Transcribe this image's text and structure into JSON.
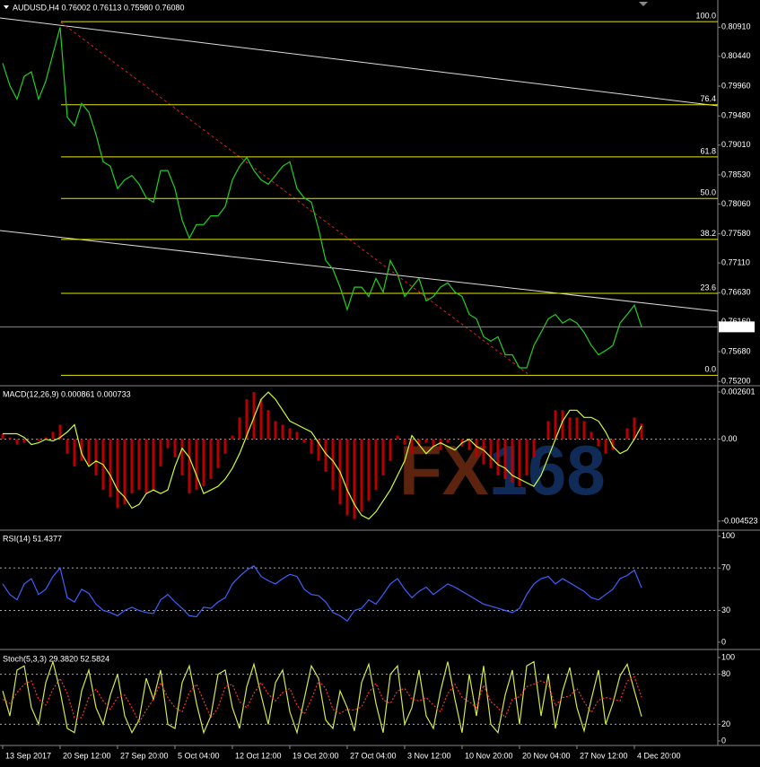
{
  "chart_data": [
    {
      "type": "line",
      "header": "AUDUSD,H4  0.76002 0.76113 0.75980 0.76080",
      "xlim": [
        -0.375,
        99.625
      ],
      "ylim": [
        0.7516,
        0.8132
      ],
      "yticks": [
        {
          "value": 0.8091,
          "label": "0.80910"
        },
        {
          "value": 0.8044,
          "label": "0.80440"
        },
        {
          "value": 0.7996,
          "label": "0.79960"
        },
        {
          "value": 0.7948,
          "label": "0.79480"
        },
        {
          "value": 0.7901,
          "label": "0.79010"
        },
        {
          "value": 0.7853,
          "label": "0.78530"
        },
        {
          "value": 0.7806,
          "label": "0.78060"
        },
        {
          "value": 0.7758,
          "label": "0.77580"
        },
        {
          "value": 0.7711,
          "label": "0.77110"
        },
        {
          "value": 0.7663,
          "label": "0.76630"
        },
        {
          "value": 0.7616,
          "label": "0.76160"
        },
        {
          "value": 0.7568,
          "label": "0.75680"
        },
        {
          "value": 0.752,
          "label": "0.75200"
        }
      ],
      "fib_levels": [
        {
          "value": 0.81,
          "label": "100.0"
        },
        {
          "value": 0.7966,
          "label": "76.4"
        },
        {
          "value": 0.7882,
          "label": "61.8"
        },
        {
          "value": 0.7815,
          "label": "50.0"
        },
        {
          "value": 0.7749,
          "label": "38.2"
        },
        {
          "value": 0.7662,
          "label": "23.6"
        },
        {
          "value": 0.753,
          "label": "0.0"
        }
      ],
      "fib_color": "#e6e600",
      "last_price": {
        "value": 0.7608,
        "label": "0.76080"
      },
      "series": [
        {
          "style": "line",
          "color": "#22d022",
          "values": [
            0.8033,
            0.7997,
            0.7975,
            0.8012,
            0.8019,
            0.7975,
            0.8004,
            0.8048,
            0.8091,
            0.7946,
            0.7932,
            0.7968,
            0.7954,
            0.7918,
            0.7874,
            0.7867,
            0.7831,
            0.7845,
            0.7852,
            0.7838,
            0.7816,
            0.7809,
            0.786,
            0.786,
            0.7831,
            0.778,
            0.7751,
            0.7773,
            0.7773,
            0.7787,
            0.7787,
            0.7802,
            0.7845,
            0.7867,
            0.7881,
            0.786,
            0.7845,
            0.7838,
            0.7852,
            0.7867,
            0.7874,
            0.7831,
            0.7816,
            0.7809,
            0.7766,
            0.7715,
            0.7701,
            0.7672,
            0.7636,
            0.7672,
            0.7672,
            0.7657,
            0.7686,
            0.7664,
            0.7715,
            0.7693,
            0.7657,
            0.7672,
            0.7686,
            0.765,
            0.7657,
            0.7672,
            0.7679,
            0.7664,
            0.7657,
            0.7628,
            0.7621,
            0.7592,
            0.7585,
            0.7592,
            0.7563,
            0.7563,
            0.7542,
            0.7542,
            0.7578,
            0.7599,
            0.7621,
            0.7628,
            0.7614,
            0.7621,
            0.7614,
            0.7599,
            0.7578,
            0.7563,
            0.757,
            0.7578,
            0.7614,
            0.7628,
            0.7643,
            0.7608
          ]
        }
      ]
    },
    {
      "type": "bar",
      "title": "MACD(12,26,9) 0.000861 0.000733",
      "xlim": [
        -0.375,
        99.625
      ],
      "ylim": [
        -0.00497,
        0.00285
      ],
      "yticks": [
        0.002601,
        {
          "value": 0,
          "label": "0.00"
        },
        -0.004523
      ],
      "levels": [
        0
      ],
      "watermark": [
        "FX",
        "168"
      ],
      "series": [
        {
          "style": "bar",
          "color": "#b80000",
          "values": [
            0.0003,
            0.0001,
            -0.0003,
            -0.0002,
            0,
            -0.0001,
            0.0001,
            0.0004,
            0.0008,
            -0.0008,
            -0.0015,
            -0.0012,
            -0.0014,
            -0.002,
            -0.0028,
            -0.0032,
            -0.0038,
            -0.0036,
            -0.003,
            -0.0028,
            -0.003,
            -0.0028,
            -0.0015,
            -0.0005,
            -0.001,
            -0.002,
            -0.003,
            -0.0028,
            -0.0026,
            -0.0022,
            -0.0016,
            -0.0008,
            0.0002,
            0.0012,
            0.0022,
            0.0026,
            0.0022,
            0.0016,
            0.001,
            0.0008,
            0.0006,
            0.0004,
            -0.0002,
            -0.0008,
            -0.0012,
            -0.0018,
            -0.0028,
            -0.0036,
            -0.0042,
            -0.0044,
            -0.004,
            -0.0034,
            -0.0028,
            -0.002,
            -0.0012,
            0.0002,
            -0.0003,
            -0.0008,
            -0.0004,
            -0.0002,
            -0.0004,
            -0.0006,
            -0.0002,
            0,
            -0.0004,
            -0.0006,
            -0.001,
            -0.0014,
            -0.0016,
            -0.002,
            -0.0022,
            -0.0024,
            -0.0026,
            -0.002,
            -0.001,
            0,
            0.001,
            0.0016,
            0.0016,
            0.0012,
            0.0012,
            0.001,
            0.0004,
            -0.0004,
            -0.0008,
            -0.0006,
            0,
            0.0006,
            0.0012,
            0.000861
          ]
        },
        {
          "style": "line",
          "color": "#ccff33",
          "values": [
            0.0003,
            0.0003,
            0.0003,
            0.0001,
            -0.0003,
            -0.0002,
            0,
            -0.0001,
            0.0001,
            0.0004,
            0.0008,
            -0.0008,
            -0.0015,
            -0.0012,
            -0.0014,
            -0.002,
            -0.0028,
            -0.0032,
            -0.0038,
            -0.0036,
            -0.003,
            -0.0028,
            -0.003,
            -0.0028,
            -0.0015,
            -0.0005,
            -0.001,
            -0.002,
            -0.003,
            -0.0028,
            -0.0026,
            -0.0022,
            -0.0016,
            -0.0008,
            0.0002,
            0.0012,
            0.0022,
            0.0026,
            0.0022,
            0.0016,
            0.001,
            0.0008,
            0.0006,
            0.0004,
            -0.0002,
            -0.0008,
            -0.0012,
            -0.0018,
            -0.0028,
            -0.0036,
            -0.0042,
            -0.0044,
            -0.004,
            -0.0034,
            -0.0028,
            -0.002,
            -0.0012,
            0.0002,
            -0.0003,
            -0.0008,
            -0.0004,
            -0.0002,
            -0.0004,
            -0.0006,
            -0.0002,
            0,
            -0.0004,
            -0.0006,
            -0.001,
            -0.0014,
            -0.0016,
            -0.002,
            -0.0022,
            -0.0024,
            -0.0026,
            -0.002,
            -0.001,
            0,
            0.001,
            0.0016,
            0.0016,
            0.0012,
            0.0012,
            0.001,
            0.0004,
            -0.0004,
            -0.0008,
            -0.0006,
            0,
            0.000733
          ]
        }
      ]
    },
    {
      "type": "line",
      "title": "RSI(14) 51.4377",
      "xlim": [
        -0.375,
        99.625
      ],
      "ylim": [
        -6,
        104
      ],
      "yticks": [
        100,
        70,
        30,
        0
      ],
      "levels": [
        70,
        30
      ],
      "series": [
        {
          "style": "line",
          "color": "#3f5fff",
          "values": [
            55,
            45,
            40,
            55,
            60,
            45,
            50,
            62,
            70,
            42,
            38,
            50,
            46,
            36,
            30,
            28,
            25,
            30,
            33,
            30,
            28,
            27,
            40,
            45,
            38,
            32,
            25,
            24,
            33,
            32,
            38,
            42,
            55,
            62,
            68,
            72,
            62,
            58,
            55,
            60,
            64,
            62,
            50,
            45,
            44,
            38,
            28,
            25,
            20,
            30,
            32,
            40,
            36,
            45,
            55,
            60,
            50,
            42,
            48,
            52,
            45,
            50,
            55,
            52,
            48,
            44,
            40,
            36,
            34,
            32,
            30,
            28,
            32,
            45,
            55,
            60,
            62,
            55,
            60,
            56,
            52,
            48,
            42,
            40,
            45,
            50,
            60,
            63,
            68,
            51.4377
          ]
        }
      ]
    },
    {
      "type": "line",
      "title": "Stoch(5,3,3) 29.3820 52.5824",
      "xlim": [
        -0.375,
        99.625
      ],
      "ylim": [
        -4.3,
        107.5
      ],
      "yticks": [
        100,
        80,
        20,
        0
      ],
      "levels": [
        80,
        20
      ],
      "xticks": [
        {
          "value": 0,
          "label": "13 Sep 2017"
        },
        {
          "value": 8,
          "label": "20 Sep 12:00"
        },
        {
          "value": 16,
          "label": "27 Sep 20:00"
        },
        {
          "value": 24,
          "label": "5 Oct 04:00"
        },
        {
          "value": 32,
          "label": "12 Oct 12:00"
        },
        {
          "value": 40,
          "label": "19 Oct 20:00"
        },
        {
          "value": 48,
          "label": "27 Oct 04:00"
        },
        {
          "value": 56,
          "label": "3 Nov 12:00"
        },
        {
          "value": 64,
          "label": "10 Nov 20:00"
        },
        {
          "value": 72,
          "label": "20 Nov 04:00"
        },
        {
          "value": 80,
          "label": "27 Nov 12:00"
        },
        {
          "value": 88,
          "label": "4 Dec 20:00"
        }
      ],
      "series": [
        {
          "style": "line",
          "color": "#d4e84a",
          "values": [
            60,
            30,
            85,
            90,
            40,
            20,
            70,
            95,
            60,
            15,
            10,
            60,
            85,
            40,
            20,
            55,
            80,
            30,
            10,
            25,
            75,
            50,
            85,
            20,
            15,
            70,
            90,
            45,
            10,
            30,
            80,
            85,
            40,
            15,
            65,
            92,
            55,
            20,
            70,
            85,
            35,
            10,
            50,
            90,
            75,
            25,
            15,
            60,
            40,
            12,
            70,
            92,
            45,
            10,
            80,
            90,
            20,
            40,
            85,
            30,
            15,
            60,
            95,
            50,
            10,
            80,
            30,
            90,
            20,
            10,
            55,
            85,
            20,
            90,
            95,
            30,
            80,
            15,
            60,
            88,
            40,
            12,
            50,
            85,
            20,
            45,
            78,
            92,
            60,
            29.382
          ]
        },
        {
          "style": "dashed",
          "color": "#ff3030",
          "values": [
            50,
            45,
            58,
            68,
            72,
            50,
            43,
            62,
            75,
            57,
            28,
            28,
            52,
            62,
            48,
            38,
            52,
            55,
            40,
            22,
            37,
            50,
            70,
            52,
            40,
            35,
            58,
            68,
            48,
            28,
            40,
            65,
            68,
            47,
            40,
            57,
            70,
            56,
            48,
            58,
            63,
            43,
            32,
            50,
            72,
            63,
            38,
            33,
            38,
            37,
            41,
            58,
            69,
            49,
            45,
            60,
            63,
            50,
            48,
            52,
            43,
            35,
            57,
            68,
            52,
            47,
            40,
            67,
            47,
            40,
            28,
            50,
            53,
            65,
            68,
            72,
            68,
            42,
            52,
            54,
            63,
            47,
            34,
            49,
            52,
            50,
            48,
            72,
            77,
            52.5824
          ]
        }
      ]
    }
  ]
}
